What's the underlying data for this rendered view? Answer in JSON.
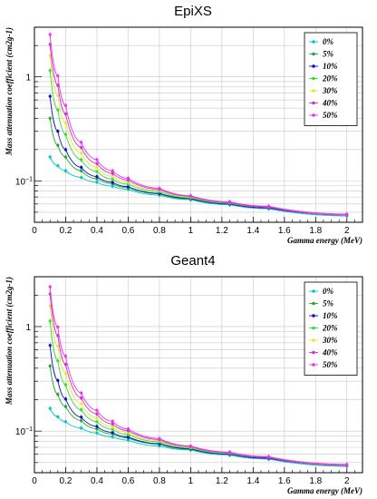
{
  "chart_data": [
    {
      "type": "line",
      "title": "EpiXS",
      "xlabel": "Gamma energy (MeV)",
      "ylabel": "Mass attenuation coefficient (cm2g-1)",
      "xlim": [
        0,
        2.1
      ],
      "ylim": [
        0.04,
        3.0
      ],
      "yscale": "log",
      "grid": true,
      "legend_position": "top-right",
      "xticks": [
        "0",
        "0.2",
        "0.4",
        "0.6",
        "0.8",
        "1",
        "1.2",
        "1.4",
        "1.6",
        "1.8",
        "2"
      ],
      "yticks": [
        "10^-1",
        "1"
      ],
      "x": [
        0.1,
        0.15,
        0.2,
        0.3,
        0.4,
        0.5,
        0.6,
        0.8,
        1.0,
        1.25,
        1.5,
        2.0
      ],
      "series": [
        {
          "name": "0%",
          "color": "#00c8c8",
          "values": [
            0.17,
            0.14,
            0.125,
            0.108,
            0.097,
            0.089,
            0.083,
            0.073,
            0.066,
            0.059,
            0.054,
            0.046
          ]
        },
        {
          "name": "5%",
          "color": "#22aa22",
          "values": [
            0.4,
            0.22,
            0.17,
            0.125,
            0.105,
            0.094,
            0.086,
            0.075,
            0.067,
            0.06,
            0.055,
            0.047
          ]
        },
        {
          "name": "10%",
          "color": "#1010c8",
          "values": [
            0.65,
            0.3,
            0.2,
            0.135,
            0.11,
            0.097,
            0.088,
            0.076,
            0.068,
            0.06,
            0.055,
            0.047
          ]
        },
        {
          "name": "20%",
          "color": "#33dd33",
          "values": [
            1.15,
            0.48,
            0.28,
            0.16,
            0.123,
            0.104,
            0.093,
            0.079,
            0.069,
            0.061,
            0.056,
            0.047
          ]
        },
        {
          "name": "30%",
          "color": "#e6e633",
          "values": [
            1.6,
            0.66,
            0.36,
            0.185,
            0.135,
            0.111,
            0.097,
            0.081,
            0.07,
            0.062,
            0.056,
            0.047
          ]
        },
        {
          "name": "40%",
          "color": "#cc33cc",
          "values": [
            2.05,
            0.83,
            0.44,
            0.21,
            0.147,
            0.118,
            0.102,
            0.083,
            0.071,
            0.062,
            0.056,
            0.047
          ]
        },
        {
          "name": "50%",
          "color": "#ee33ee",
          "values": [
            2.55,
            1.02,
            0.53,
            0.235,
            0.16,
            0.125,
            0.106,
            0.085,
            0.072,
            0.063,
            0.057,
            0.048
          ]
        }
      ]
    },
    {
      "type": "line",
      "title": "Geant4",
      "xlabel": "Gamma energy (MeV)",
      "ylabel": "Mass attenuation coefficient (cm2g-1)",
      "xlim": [
        0,
        2.1
      ],
      "ylim": [
        0.04,
        3.0
      ],
      "yscale": "log",
      "grid": true,
      "legend_position": "top-right",
      "xticks": [
        "0",
        "0.2",
        "0.4",
        "0.6",
        "0.8",
        "1",
        "1.2",
        "1.4",
        "1.6",
        "1.8",
        "2"
      ],
      "yticks": [
        "10^-1",
        "1"
      ],
      "x": [
        0.1,
        0.15,
        0.2,
        0.3,
        0.4,
        0.5,
        0.6,
        0.8,
        1.0,
        1.25,
        1.5,
        2.0
      ],
      "series": [
        {
          "name": "0%",
          "color": "#00c8c8",
          "values": [
            0.165,
            0.137,
            0.123,
            0.107,
            0.096,
            0.088,
            0.082,
            0.072,
            0.066,
            0.059,
            0.054,
            0.046
          ]
        },
        {
          "name": "5%",
          "color": "#22aa22",
          "values": [
            0.42,
            0.225,
            0.172,
            0.126,
            0.105,
            0.094,
            0.086,
            0.075,
            0.067,
            0.06,
            0.055,
            0.047
          ]
        },
        {
          "name": "10%",
          "color": "#1010c8",
          "values": [
            0.66,
            0.305,
            0.203,
            0.136,
            0.111,
            0.097,
            0.088,
            0.076,
            0.068,
            0.06,
            0.055,
            0.047
          ]
        },
        {
          "name": "20%",
          "color": "#33dd33",
          "values": [
            1.13,
            0.47,
            0.278,
            0.16,
            0.123,
            0.104,
            0.093,
            0.079,
            0.069,
            0.061,
            0.056,
            0.047
          ]
        },
        {
          "name": "30%",
          "color": "#e6e633",
          "values": [
            1.58,
            0.65,
            0.355,
            0.183,
            0.134,
            0.11,
            0.097,
            0.081,
            0.07,
            0.062,
            0.056,
            0.047
          ]
        },
        {
          "name": "40%",
          "color": "#cc33cc",
          "values": [
            2.05,
            0.82,
            0.435,
            0.208,
            0.146,
            0.117,
            0.101,
            0.083,
            0.071,
            0.062,
            0.056,
            0.047
          ]
        },
        {
          "name": "50%",
          "color": "#ee33ee",
          "values": [
            2.4,
            0.99,
            0.52,
            0.232,
            0.158,
            0.124,
            0.105,
            0.085,
            0.072,
            0.063,
            0.057,
            0.048
          ]
        }
      ]
    }
  ]
}
